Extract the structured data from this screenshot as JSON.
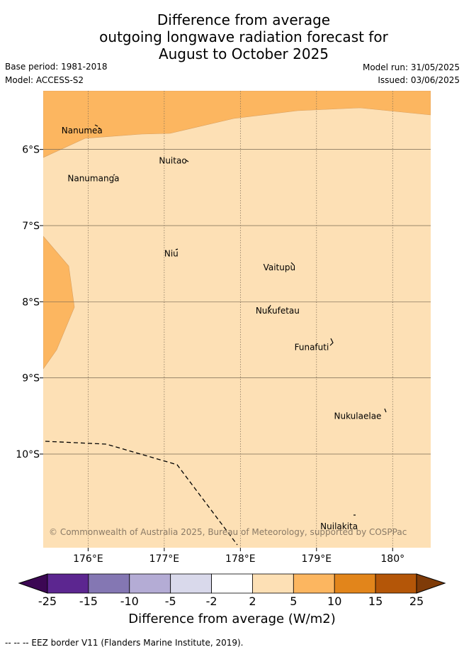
{
  "title": {
    "line1": "Difference from average",
    "line2": "outgoing longwave radiation forecast for",
    "line3": "August to October 2025"
  },
  "meta": {
    "base_period": "Base period: 1981-2018",
    "model": "Model: ACCESS-S2",
    "model_run": "Model run: 31/05/2025",
    "issued": "Issued: 03/06/2025"
  },
  "map": {
    "lon_range": [
      175.41,
      180.5
    ],
    "lat_range": [
      -11.23,
      -5.23
    ],
    "grid": true,
    "lon_ticks": [
      {
        "value": 176,
        "label": "176°E"
      },
      {
        "value": 177,
        "label": "177°E"
      },
      {
        "value": 178,
        "label": "178°E"
      },
      {
        "value": 179,
        "label": "179°E"
      },
      {
        "value": 180,
        "label": "180°"
      }
    ],
    "lat_ticks": [
      {
        "value": -6,
        "label": "6°S"
      },
      {
        "value": -7,
        "label": "7°S"
      },
      {
        "value": -8,
        "label": "8°S"
      },
      {
        "value": -9,
        "label": "9°S"
      },
      {
        "value": -10,
        "label": "10°S"
      }
    ],
    "background_color": "#fde0b5",
    "places": [
      {
        "name": "Nanumea",
        "lon": 175.65,
        "lat": -5.75
      },
      {
        "name": "Nuitao",
        "lon": 176.93,
        "lat": -6.15
      },
      {
        "name": "Nanumanga",
        "lon": 175.73,
        "lat": -6.38
      },
      {
        "name": "Niu",
        "lon": 177.0,
        "lat": -7.37
      },
      {
        "name": "Vaitupu",
        "lon": 178.3,
        "lat": -7.55
      },
      {
        "name": "Nukufetau",
        "lon": 178.2,
        "lat": -8.12
      },
      {
        "name": "Funafuti",
        "lon": 178.71,
        "lat": -8.6
      },
      {
        "name": "Nukulaelae",
        "lon": 179.23,
        "lat": -9.5
      },
      {
        "name": "Nuilakita",
        "lon": 179.05,
        "lat": -10.95
      }
    ],
    "copyright": "© Commonwealth of Australia 2025, Bureau of Meteorology, supported by COSPPac"
  },
  "colorbar": {
    "ticks": [
      "-25",
      "-15",
      "-10",
      "-5",
      "-2",
      "2",
      "5",
      "10",
      "15",
      "25"
    ],
    "colors": [
      "#5c2690",
      "#8477b3",
      "#b4acd5",
      "#d9d9eb",
      "#ffffff",
      "#fde0b5",
      "#fcb660",
      "#e2851b",
      "#b45608"
    ],
    "under_color": "#3c0754",
    "over_color": "#7f3b08",
    "label": "Difference from average (W/m2)"
  },
  "footer": "-- -- -- EEZ border V11 (Flanders Marine Institute, 2019)."
}
